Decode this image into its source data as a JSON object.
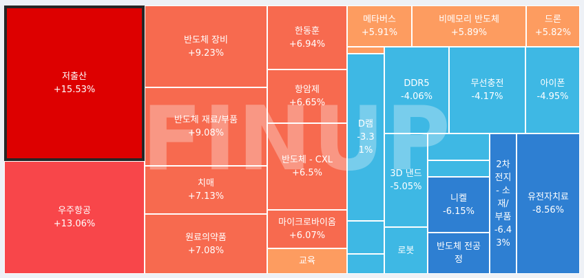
{
  "chart_data": {
    "type": "treemap",
    "colors": {
      "strong_up": "#dd0000",
      "up": "#f8464a",
      "mid_up": "#f76a4f",
      "light_up": "#fd9c60",
      "mid_down": "#3eb8e4",
      "down": "#2e7fd2"
    },
    "watermark": "FINUP",
    "selected": "저출산",
    "tiles": [
      {
        "name": "저출산",
        "change": "+15.53%",
        "value": 15.53,
        "color": "#dd0000"
      },
      {
        "name": "우주항공",
        "change": "+13.06%",
        "value": 13.06,
        "color": "#f8464a"
      },
      {
        "name": "반도체 장비",
        "change": "+9.23%",
        "value": 9.23,
        "color": "#f76a4f"
      },
      {
        "name": "반도체 재료/부품",
        "change": "+9.08%",
        "value": 9.08,
        "color": "#f76a4f"
      },
      {
        "name": "치매",
        "change": "+7.13%",
        "value": 7.13,
        "color": "#f76a4f"
      },
      {
        "name": "원료의약품",
        "change": "+7.08%",
        "value": 7.08,
        "color": "#f76a4f"
      },
      {
        "name": "한동훈",
        "change": "+6.94%",
        "value": 6.94,
        "color": "#f76a4f"
      },
      {
        "name": "항암제",
        "change": "+6.65%",
        "value": 6.65,
        "color": "#f76a4f"
      },
      {
        "name": "반도체 - CXL",
        "change": "+6.5%",
        "value": 6.5,
        "color": "#f76a4f"
      },
      {
        "name": "마이크로바이옴",
        "change": "+6.07%",
        "value": 6.07,
        "color": "#f76a4f"
      },
      {
        "name": "교육",
        "change": "",
        "value": null,
        "color": "#fd9c60"
      },
      {
        "name": "메타버스",
        "change": "+5.91%",
        "value": 5.91,
        "color": "#fd9c60"
      },
      {
        "name": "비메모리 반도체",
        "change": "+5.89%",
        "value": 5.89,
        "color": "#fd9c60"
      },
      {
        "name": "드론",
        "change": "+5.82%",
        "value": 5.82,
        "color": "#fd9c60"
      },
      {
        "name": "",
        "change": "",
        "value": null,
        "color": "#fd9c60"
      },
      {
        "name": "D램\n-3.3\n1%",
        "change": "",
        "value": -3.31,
        "color": "#3eb8e4"
      },
      {
        "name": "",
        "change": "",
        "value": null,
        "color": "#3eb8e4"
      },
      {
        "name": "",
        "change": "",
        "value": null,
        "color": "#3eb8e4"
      },
      {
        "name": "DDR5",
        "change": "-4.06%",
        "value": -4.06,
        "color": "#3eb8e4"
      },
      {
        "name": "무선충전",
        "change": "-4.17%",
        "value": -4.17,
        "color": "#3eb8e4"
      },
      {
        "name": "아이폰",
        "change": "-4.95%",
        "value": -4.95,
        "color": "#3eb8e4"
      },
      {
        "name": "3D 낸드",
        "change": "-5.05%",
        "value": -5.05,
        "color": "#3eb8e4"
      },
      {
        "name": "로봇",
        "change": "",
        "value": null,
        "color": "#3eb8e4"
      },
      {
        "name": "",
        "change": "",
        "value": null,
        "color": "#3eb8e4"
      },
      {
        "name": "",
        "change": "",
        "value": null,
        "color": "#3eb8e4"
      },
      {
        "name": "",
        "change": "",
        "value": null,
        "color": "#3eb8e4"
      },
      {
        "name": "니켈",
        "change": "-6.15%",
        "value": -6.15,
        "color": "#2e7fd2"
      },
      {
        "name": "반도체 전공\n정",
        "change": "",
        "value": null,
        "color": "#2e7fd2"
      },
      {
        "name": "2차\n전지\n- 소\n재/\n부품\n-6.4\n3%",
        "change": "",
        "value": -6.43,
        "color": "#2e7fd2"
      },
      {
        "name": "유전자치료",
        "change": "-8.56%",
        "value": -8.56,
        "color": "#2e7fd2"
      }
    ]
  }
}
